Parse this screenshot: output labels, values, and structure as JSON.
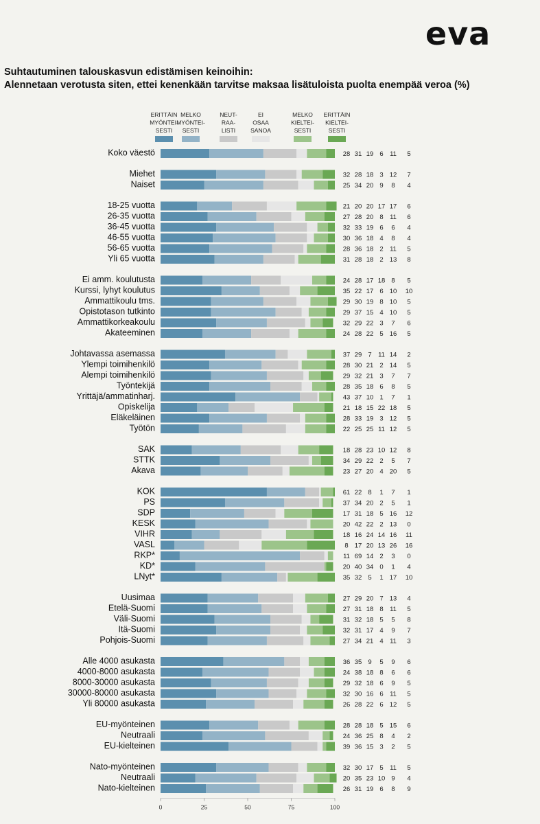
{
  "logo": "eva",
  "title": {
    "line1": "Suhtautuminen talouskasvun edistämisen keinoihin:",
    "line2": "Alennetaan verotusta siten, ettei kenenkään tarvitse maksaa lisätuloista puolta enempää veroa (%)"
  },
  "colors": {
    "c1": "#5b8fae",
    "c2": "#93b3c7",
    "c3": "#c9c9c9",
    "c4": "#e6e6e6",
    "c5": "#9cc48a",
    "c6": "#6aa854"
  },
  "chart_data": {
    "type": "bar",
    "orientation": "horizontal",
    "stacked": true,
    "xlim": [
      0,
      100
    ],
    "xticks": [
      "0",
      "25",
      "50",
      "75",
      "100"
    ],
    "legend": [
      {
        "lines": [
          "ERITTÄIN",
          "MYÖNTEI-",
          "SESTI"
        ],
        "color_key": "c1"
      },
      {
        "lines": [
          "MELKO",
          "MYÖNTEI-",
          "SESTI"
        ],
        "color_key": "c2"
      },
      {
        "lines": [
          "NEUT-",
          "RAA-",
          "LISTI"
        ],
        "color_key": "c3"
      },
      {
        "lines": [
          "EI",
          "OSAA",
          "SANOA"
        ],
        "color_key": "c4"
      },
      {
        "lines": [
          "MELKO",
          "KIELTEI-",
          "SESTI"
        ],
        "color_key": "c5"
      },
      {
        "lines": [
          "ERITTÄIN",
          "KIELTEI-",
          "SESTI"
        ],
        "color_key": "c6"
      }
    ],
    "groups": [
      {
        "rows": [
          {
            "label": "Koko väestö",
            "values": [
              28,
              31,
              19,
              6,
              11,
              5
            ]
          }
        ]
      },
      {
        "rows": [
          {
            "label": "Miehet",
            "values": [
              32,
              28,
              18,
              3,
              12,
              7
            ]
          },
          {
            "label": "Naiset",
            "values": [
              25,
              34,
              20,
              9,
              8,
              4
            ]
          }
        ]
      },
      {
        "rows": [
          {
            "label": "18-25 vuotta",
            "values": [
              21,
              20,
              20,
              17,
              17,
              6
            ]
          },
          {
            "label": "26-35 vuotta",
            "values": [
              27,
              28,
              20,
              8,
              11,
              6
            ]
          },
          {
            "label": "36-45 vuotta",
            "values": [
              32,
              33,
              19,
              6,
              6,
              4
            ]
          },
          {
            "label": "46-55 vuotta",
            "values": [
              30,
              36,
              18,
              4,
              8,
              4
            ]
          },
          {
            "label": "56-65 vuotta",
            "values": [
              28,
              36,
              18,
              2,
              11,
              5
            ]
          },
          {
            "label": "Yli 65 vuotta",
            "values": [
              31,
              28,
              18,
              2,
              13,
              8
            ]
          }
        ]
      },
      {
        "rows": [
          {
            "label": "Ei amm. koulutusta",
            "values": [
              24,
              28,
              17,
              18,
              8,
              5
            ]
          },
          {
            "label": "Kurssi, lyhyt koulutus",
            "values": [
              35,
              22,
              17,
              6,
              10,
              10
            ]
          },
          {
            "label": "Ammattikoulu tms.",
            "values": [
              29,
              30,
              19,
              8,
              10,
              5
            ]
          },
          {
            "label": "Opistotason tutkinto",
            "values": [
              29,
              37,
              15,
              4,
              10,
              5
            ]
          },
          {
            "label": "Ammattikorkeakoulu",
            "values": [
              32,
              29,
              22,
              3,
              7,
              6
            ]
          },
          {
            "label": "Akateeminen",
            "values": [
              24,
              28,
              22,
              5,
              16,
              5
            ]
          }
        ]
      },
      {
        "rows": [
          {
            "label": "Johtavassa asemassa",
            "values": [
              37,
              29,
              7,
              11,
              14,
              2
            ]
          },
          {
            "label": "Ylempi toimihenkilö",
            "values": [
              28,
              30,
              21,
              2,
              14,
              5
            ]
          },
          {
            "label": "Alempi toimihenkilö",
            "values": [
              29,
              32,
              21,
              3,
              7,
              7
            ]
          },
          {
            "label": "Työntekijä",
            "values": [
              28,
              35,
              18,
              6,
              8,
              5
            ]
          },
          {
            "label": "Yrittäjä/ammatinharj.",
            "values": [
              43,
              37,
              10,
              1,
              7,
              1
            ]
          },
          {
            "label": "Opiskelija",
            "values": [
              21,
              18,
              15,
              22,
              18,
              5
            ]
          },
          {
            "label": "Eläkeläinen",
            "values": [
              28,
              33,
              19,
              3,
              12,
              5
            ]
          },
          {
            "label": "Työtön",
            "values": [
              22,
              25,
              25,
              11,
              12,
              5
            ]
          }
        ]
      },
      {
        "rows": [
          {
            "label": "SAK",
            "values": [
              18,
              28,
              23,
              10,
              12,
              8
            ]
          },
          {
            "label": "STTK",
            "values": [
              34,
              29,
              22,
              2,
              5,
              7
            ]
          },
          {
            "label": "Akava",
            "values": [
              23,
              27,
              20,
              4,
              20,
              5
            ]
          }
        ]
      },
      {
        "rows": [
          {
            "label": "KOK",
            "values": [
              61,
              22,
              8,
              1,
              7,
              1
            ]
          },
          {
            "label": "PS",
            "values": [
              37,
              34,
              20,
              2,
              5,
              1
            ]
          },
          {
            "label": "SDP",
            "values": [
              17,
              31,
              18,
              5,
              16,
              12
            ]
          },
          {
            "label": "KESK",
            "values": [
              20,
              42,
              22,
              2,
              13,
              0
            ]
          },
          {
            "label": "VIHR",
            "values": [
              18,
              16,
              24,
              14,
              16,
              11
            ]
          },
          {
            "label": "VASL",
            "values": [
              8,
              17,
              20,
              13,
              26,
              16
            ]
          },
          {
            "label": "RKP*",
            "values": [
              11,
              69,
              14,
              2,
              3,
              0
            ]
          },
          {
            "label": "KD*",
            "values": [
              20,
              40,
              34,
              0,
              1,
              4
            ]
          },
          {
            "label": "LNyt*",
            "values": [
              35,
              32,
              5,
              1,
              17,
              10
            ]
          }
        ]
      },
      {
        "rows": [
          {
            "label": "Uusimaa",
            "values": [
              27,
              29,
              20,
              7,
              13,
              4
            ]
          },
          {
            "label": "Etelä-Suomi",
            "values": [
              27,
              31,
              18,
              8,
              11,
              5
            ]
          },
          {
            "label": "Väli-Suomi",
            "values": [
              31,
              32,
              18,
              5,
              5,
              8
            ]
          },
          {
            "label": "Itä-Suomi",
            "values": [
              32,
              31,
              17,
              4,
              9,
              7
            ]
          },
          {
            "label": "Pohjois-Suomi",
            "values": [
              27,
              34,
              21,
              4,
              11,
              3
            ]
          }
        ]
      },
      {
        "rows": [
          {
            "label": "Alle 4000 asukasta",
            "values": [
              36,
              35,
              9,
              5,
              9,
              6
            ]
          },
          {
            "label": "4000-8000 asukasta",
            "values": [
              24,
              38,
              18,
              8,
              6,
              6
            ]
          },
          {
            "label": "8000-30000 asukasta",
            "values": [
              29,
              32,
              18,
              6,
              9,
              5
            ]
          },
          {
            "label": "30000-80000 asukasta",
            "values": [
              32,
              30,
              16,
              6,
              11,
              5
            ]
          },
          {
            "label": "Yli 80000 asukasta",
            "values": [
              26,
              28,
              22,
              6,
              12,
              5
            ]
          }
        ]
      },
      {
        "rows": [
          {
            "label": "EU-myönteinen",
            "values": [
              28,
              28,
              18,
              5,
              15,
              6
            ]
          },
          {
            "label": "Neutraali",
            "values": [
              24,
              36,
              25,
              8,
              4,
              2
            ]
          },
          {
            "label": "EU-kielteinen",
            "values": [
              39,
              36,
              15,
              3,
              2,
              5
            ]
          }
        ]
      },
      {
        "rows": [
          {
            "label": "Nato-myönteinen",
            "values": [
              32,
              30,
              17,
              5,
              11,
              5
            ]
          },
          {
            "label": "Neutraali",
            "values": [
              20,
              35,
              23,
              10,
              9,
              4
            ]
          },
          {
            "label": "Nato-kielteinen",
            "values": [
              26,
              31,
              19,
              6,
              8,
              9
            ]
          }
        ]
      }
    ]
  }
}
